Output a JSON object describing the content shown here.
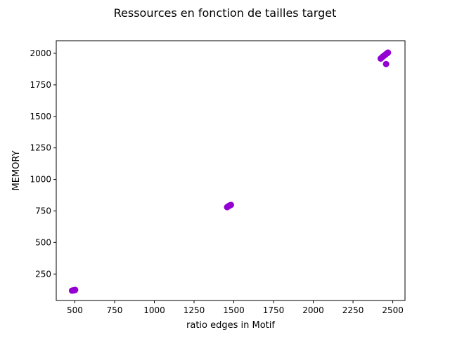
{
  "chart_data": {
    "type": "scatter",
    "title": "Ressources en fonction de tailles target",
    "xlabel": "ratio edges in Motif",
    "ylabel": "MEMORY",
    "xlim": [
      383,
      2577
    ],
    "ylim": [
      40,
      2100
    ],
    "xticks": [
      500,
      750,
      1000,
      1250,
      1500,
      1750,
      2000,
      2250,
      2500
    ],
    "yticks": [
      250,
      500,
      750,
      1000,
      1250,
      1500,
      1750,
      2000
    ],
    "grid": false,
    "color": "#9400D3",
    "series": [
      {
        "points": [
          [
            482,
            118
          ],
          [
            486,
            119
          ],
          [
            490,
            120
          ],
          [
            494,
            121
          ],
          [
            498,
            122
          ],
          [
            502,
            124
          ],
          [
            1458,
            780
          ],
          [
            1462,
            784
          ],
          [
            1467,
            788
          ],
          [
            1472,
            792
          ],
          [
            1477,
            795
          ],
          [
            1482,
            798
          ],
          [
            2424,
            1958
          ],
          [
            2430,
            1965
          ],
          [
            2436,
            1972
          ],
          [
            2442,
            1978
          ],
          [
            2448,
            1984
          ],
          [
            2454,
            1990
          ],
          [
            2460,
            1996
          ],
          [
            2466,
            2002
          ],
          [
            2470,
            2006
          ],
          [
            2458,
            1915
          ]
        ]
      }
    ]
  }
}
